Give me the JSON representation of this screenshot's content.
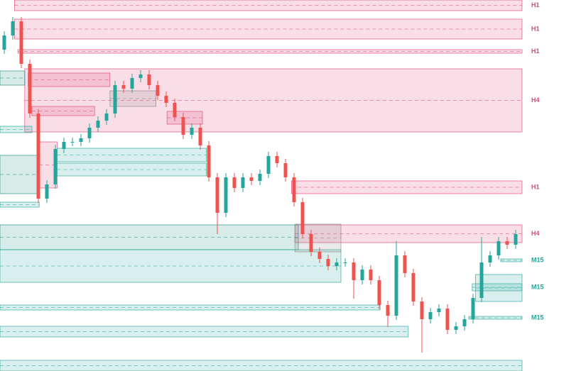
{
  "chart_data": {
    "type": "candlestick",
    "xlim": [
      -0.5,
      60.75
    ],
    "ylim": [
      0,
      523
    ],
    "up_color": "#26a69a",
    "down_color": "#ef5350",
    "open": [
      453,
      473,
      493,
      433,
      363,
      243,
      263,
      313,
      323,
      323,
      328,
      343,
      353,
      363,
      403,
      398,
      413,
      418,
      403,
      388,
      378,
      358,
      333,
      343,
      318,
      273,
      223,
      273,
      258,
      273,
      268,
      278,
      303,
      293,
      273,
      238,
      193,
      168,
      158,
      148,
      153,
      153,
      128,
      143,
      128,
      93,
      78,
      163,
      138,
      98,
      73,
      83,
      88,
      58,
      63,
      73,
      103,
      153,
      163,
      183,
      178
    ],
    "high": [
      479,
      499,
      499,
      439,
      369,
      269,
      319,
      329,
      329,
      334,
      349,
      359,
      369,
      409,
      409,
      419,
      424,
      424,
      409,
      394,
      384,
      364,
      349,
      349,
      324,
      279,
      279,
      279,
      279,
      279,
      284,
      309,
      309,
      299,
      279,
      244,
      199,
      174,
      164,
      159,
      159,
      159,
      149,
      149,
      134,
      99,
      183,
      169,
      144,
      104,
      89,
      94,
      94,
      69,
      79,
      109,
      189,
      169,
      189,
      189,
      199
    ],
    "low": [
      447,
      467,
      427,
      357,
      237,
      237,
      257,
      307,
      317,
      317,
      322,
      337,
      347,
      357,
      392,
      392,
      407,
      397,
      382,
      372,
      352,
      327,
      327,
      312,
      267,
      193,
      217,
      252,
      252,
      262,
      262,
      272,
      287,
      267,
      232,
      187,
      162,
      152,
      142,
      142,
      147,
      102,
      122,
      122,
      87,
      62,
      72,
      132,
      92,
      26,
      67,
      77,
      52,
      52,
      57,
      67,
      97,
      147,
      157,
      172,
      172
    ],
    "close": [
      473,
      493,
      433,
      363,
      243,
      263,
      313,
      323,
      323,
      328,
      343,
      353,
      363,
      403,
      398,
      413,
      418,
      403,
      388,
      378,
      358,
      333,
      343,
      318,
      273,
      223,
      273,
      258,
      273,
      268,
      278,
      303,
      293,
      273,
      238,
      193,
      168,
      158,
      148,
      153,
      153,
      128,
      143,
      128,
      93,
      78,
      163,
      138,
      98,
      73,
      83,
      88,
      58,
      63,
      73,
      103,
      153,
      163,
      183,
      178,
      193
    ],
    "zones": [
      {
        "label": "H1",
        "top": 523,
        "bottom": 508,
        "x_start": 1.2,
        "x_end": 60.75,
        "color": "#e0457b"
      },
      {
        "label": "H1",
        "top": 496,
        "bottom": 468,
        "x_start": 1.2,
        "x_end": 60.75,
        "color": "#e0457b"
      },
      {
        "label": "H1",
        "top": 453,
        "bottom": 448,
        "x_start": 1.6,
        "x_end": 60.75,
        "color": "#e0457b"
      },
      {
        "label": "H4",
        "top": 426,
        "bottom": 337,
        "x_start": 2.4,
        "x_end": 60.75,
        "color": "#e0457b"
      },
      {
        "label": "H1",
        "top": 268,
        "bottom": 250,
        "x_start": 33.7,
        "x_end": 60.75,
        "color": "#e0457b"
      },
      {
        "label": "H4",
        "top": 206,
        "bottom": 181,
        "x_start": 34.1,
        "x_end": 60.75,
        "color": "#e0457b"
      },
      {
        "label": "M15",
        "top": 158,
        "bottom": 154,
        "x_start": 58.25,
        "x_end": 60.75,
        "color": "#26a69a"
      },
      {
        "label": "M15",
        "top": 123,
        "bottom": 113,
        "x_start": 54.9,
        "x_end": 60.75,
        "color": "#26a69a"
      },
      {
        "label": "M15",
        "top": 77,
        "bottom": 73,
        "x_start": 54.5,
        "x_end": 60.75,
        "color": "#26a69a"
      },
      {
        "top": 420,
        "bottom": 401,
        "x_start": 2.8,
        "x_end": 12.4,
        "color": "#e0457b"
      },
      {
        "top": 373,
        "bottom": 360,
        "x_start": 3.25,
        "x_end": 10.6,
        "color": "#e0457b"
      },
      {
        "top": 366,
        "bottom": 348,
        "x_start": 19.1,
        "x_end": 23.25,
        "color": "#e0457b"
      },
      {
        "top": 323,
        "bottom": 258,
        "x_start": 4.1,
        "x_end": 6.2,
        "color": "#e0457b"
      },
      {
        "top": 206,
        "bottom": 171,
        "x_start": -0.5,
        "x_end": 34.5,
        "color": "#1f8f7f"
      },
      {
        "top": 171,
        "bottom": 125,
        "x_start": -0.5,
        "x_end": 39.5,
        "color": "#26a69a"
      },
      {
        "top": 93,
        "bottom": 86,
        "x_start": -0.5,
        "x_end": 44.1,
        "color": "#26a69a"
      },
      {
        "top": 63,
        "bottom": 48,
        "x_start": -0.5,
        "x_end": 47.4,
        "color": "#26a69a"
      },
      {
        "top": 15,
        "bottom": 0,
        "x_start": -0.5,
        "x_end": 60.75,
        "color": "#26a69a"
      },
      {
        "top": 304,
        "bottom": 250,
        "x_start": -0.5,
        "x_end": 4.1,
        "color": "#1f8f7f"
      },
      {
        "top": 423,
        "bottom": 403,
        "x_start": -0.5,
        "x_end": 2.4,
        "color": "#1f8f7f"
      },
      {
        "top": 345,
        "bottom": 336,
        "x_start": -0.5,
        "x_end": 3.25,
        "color": "#26a69a"
      },
      {
        "top": 314,
        "bottom": 295,
        "x_start": 6.2,
        "x_end": 23.7,
        "color": "#26a69a"
      },
      {
        "top": 293,
        "bottom": 275,
        "x_start": 6.2,
        "x_end": 23.7,
        "color": "#26a69a"
      },
      {
        "top": 238,
        "bottom": 231,
        "x_start": -0.5,
        "x_end": 4.1,
        "color": "#26a69a"
      },
      {
        "top": 136,
        "bottom": 98,
        "x_start": 55.3,
        "x_end": 60.75,
        "color": "#26a69a"
      },
      {
        "top": 207,
        "bottom": 168,
        "x_start": 34.1,
        "x_end": 39.5,
        "color": "#888888"
      },
      {
        "top": 395,
        "bottom": 373,
        "x_start": 12.4,
        "x_end": 17.8,
        "color": "#888888"
      }
    ]
  }
}
